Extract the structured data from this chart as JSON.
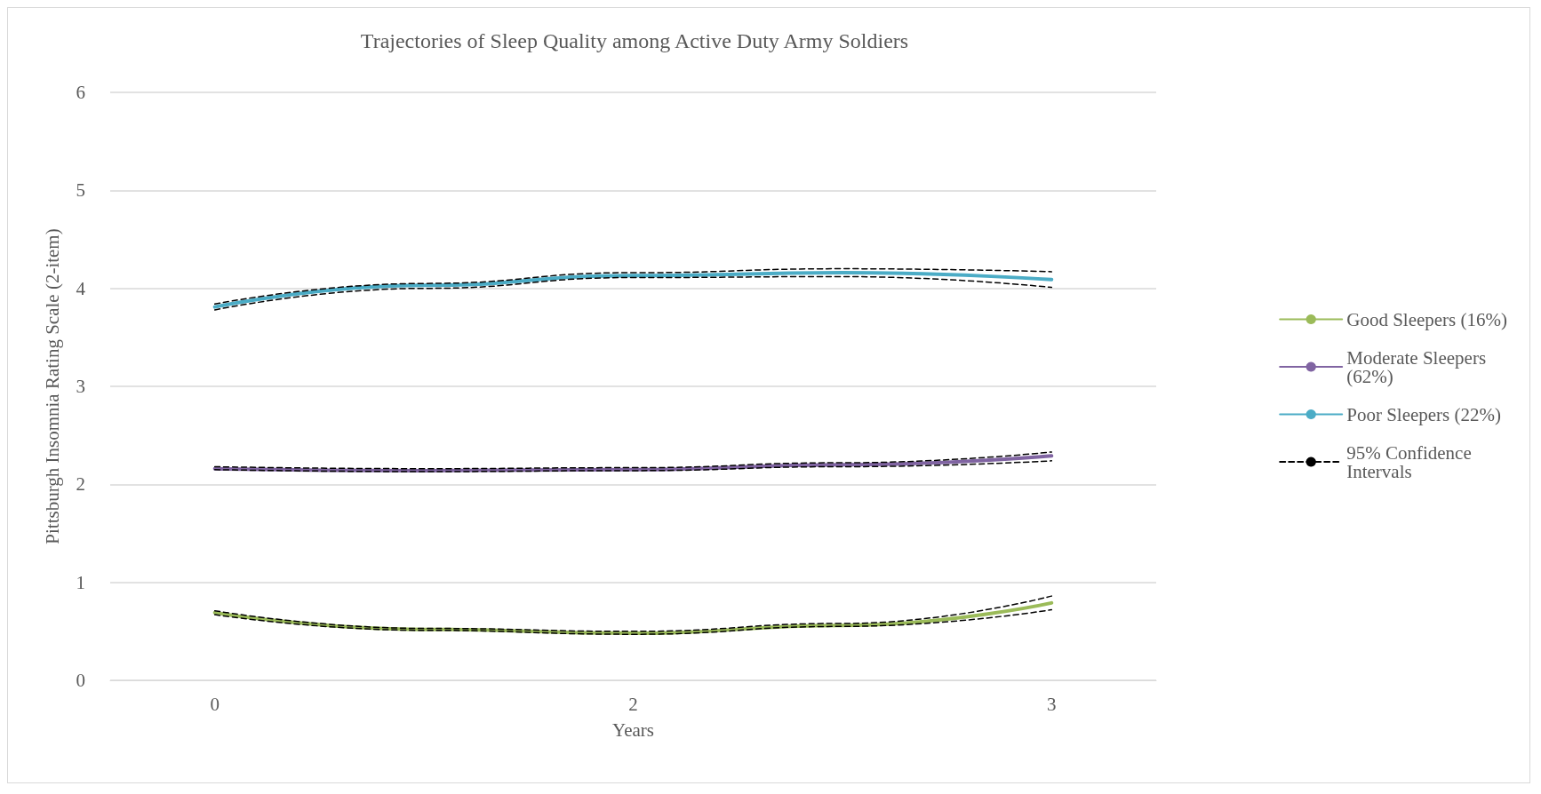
{
  "chart_data": {
    "type": "line",
    "title": "Trajectories of Sleep Quality among Active Duty Army Soldiers",
    "xlabel": "Years",
    "ylabel": "Pittsburgh Insomnia Rating Scale (2-item)",
    "categories": [
      "0",
      null,
      "2",
      null,
      "3"
    ],
    "ylim": [
      0,
      6
    ],
    "yticks": [
      0,
      1,
      2,
      3,
      4,
      5,
      6
    ],
    "grid": "y",
    "legend": "right",
    "marker": "none",
    "line_style": "solid",
    "series": [
      {
        "name": "Good Sleepers (16%)",
        "color": "#9bbb59",
        "values": [
          0.69,
          0.52,
          0.48,
          0.56,
          0.79
        ]
      },
      {
        "name": "Moderate Sleepers (62%)",
        "color": "#8064a2",
        "values": [
          2.16,
          2.14,
          2.15,
          2.2,
          2.29
        ]
      },
      {
        "name": "Poor Sleepers (22%)",
        "color": "#4bacc6",
        "values": [
          3.81,
          4.03,
          4.13,
          4.16,
          4.09
        ]
      },
      {
        "name": "95% Confidence Intervals",
        "color": "#000000",
        "line_style": "dashed",
        "values": [
          0.67,
          0.51,
          0.47,
          0.55,
          0.72
        ]
      },
      {
        "color": "#000000",
        "line_style": "dashed",
        "values": [
          0.71,
          0.53,
          0.5,
          0.58,
          0.86
        ]
      },
      {
        "color": "#000000",
        "line_style": "dashed",
        "values": [
          2.15,
          2.13,
          2.14,
          2.18,
          2.24
        ]
      },
      {
        "color": "#000000",
        "line_style": "dashed",
        "values": [
          2.18,
          2.16,
          2.17,
          2.22,
          2.33
        ]
      },
      {
        "color": "#000000",
        "line_style": "dashed",
        "values": [
          3.78,
          4.0,
          4.11,
          4.12,
          4.01
        ]
      },
      {
        "color": "#000000",
        "line_style": "dashed",
        "values": [
          3.84,
          4.05,
          4.16,
          4.2,
          4.17
        ]
      }
    ]
  }
}
